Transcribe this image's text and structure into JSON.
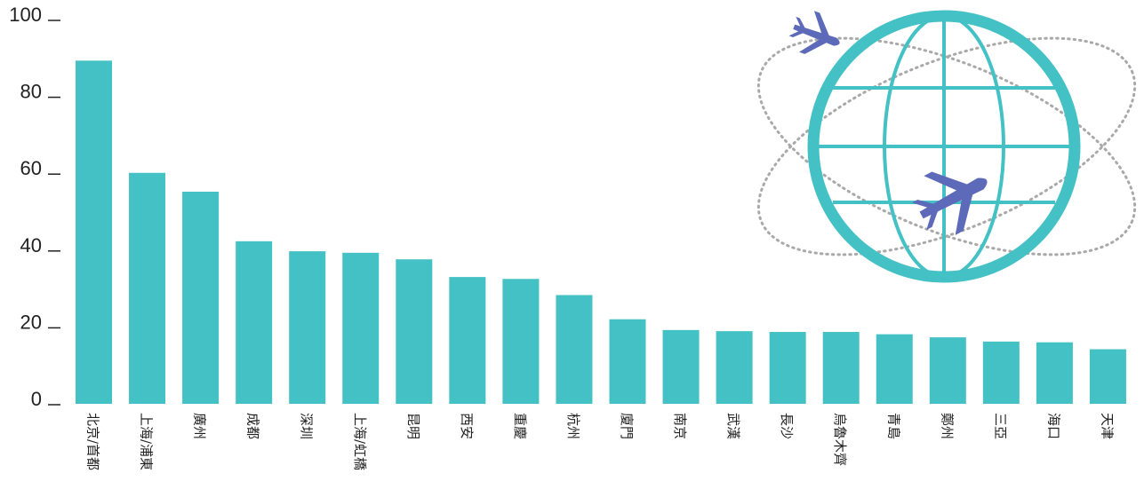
{
  "chart_data": {
    "type": "bar",
    "title": "",
    "xlabel": "",
    "ylabel": "",
    "ylim": [
      0,
      100
    ],
    "yticks": [
      "0",
      "20",
      "40",
      "60",
      "80",
      "100"
    ],
    "grid": false,
    "categories": [
      "北京/首都",
      "上海/浦東",
      "廣州",
      "成都",
      "深圳",
      "上海/虹橋",
      "昆明",
      "西安",
      "重慶",
      "杭州",
      "廈門",
      "南京",
      "武漢",
      "長沙",
      "烏魯木齊",
      "青島",
      "鄭州",
      "三亞",
      "海口",
      "天津"
    ],
    "values": [
      89.3,
      60.1,
      55.2,
      42.3,
      39.7,
      39.3,
      37.6,
      33.0,
      32.5,
      28.3,
      22.0,
      19.2,
      18.9,
      18.7,
      18.7,
      18.1,
      17.3,
      16.2,
      16.0,
      14.2
    ],
    "bar_color": "#44c1c5"
  },
  "illustration": {
    "globe_color": "#44c1c5",
    "airplane_color": "#5d6aba",
    "orbit_color": "#a9a9a9",
    "icons": [
      "globe-icon",
      "airplane-icon",
      "orbit-path"
    ]
  }
}
